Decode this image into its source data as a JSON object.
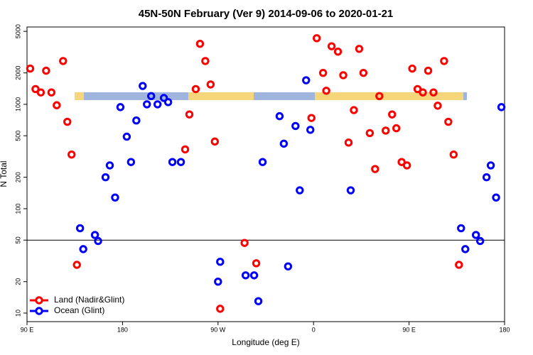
{
  "chart_data": {
    "type": "scatter",
    "title": "45N-50N February (Ver 9)   2014-09-06 to 2020-01-21",
    "x_label": "Longitude (deg E)",
    "y_label": "N Total",
    "y_log": true,
    "xlim": [
      90,
      540
    ],
    "ylim": [
      8.28,
      5508
    ],
    "xticks": [
      {
        "value": 90,
        "label": "90 E"
      },
      180,
      {
        "value": 270,
        "label": "90 W"
      },
      {
        "value": 360,
        "label": "0"
      },
      {
        "value": 450,
        "label": "90 E"
      },
      {
        "value": 540,
        "label": "180"
      }
    ],
    "yticks": [
      10,
      20,
      50,
      100,
      200,
      500,
      1000,
      2000,
      5000
    ],
    "hline": 50,
    "legend_position": "bottom-left",
    "series": [
      {
        "name": "Land (Nadir&Glint)",
        "color": "#ff0000",
        "x": [
          93,
          98,
          103,
          108,
          113,
          118,
          124,
          128,
          132,
          137,
          243,
          239,
          249,
          253,
          258,
          263,
          267,
          272,
          295,
          306,
          358,
          363,
          369,
          372,
          377,
          383,
          388,
          393,
          398,
          403,
          407,
          413,
          418,
          422,
          428,
          434,
          438,
          443,
          448,
          453,
          458,
          463,
          468,
          473,
          477,
          483,
          487,
          492,
          497
        ],
        "values": [
          2200,
          1400,
          1300,
          2100,
          1300,
          980,
          2600,
          680,
          330,
          29,
          800,
          370,
          1400,
          3800,
          2600,
          1550,
          440,
          11,
          47,
          30,
          740,
          4300,
          2000,
          1350,
          3600,
          3200,
          1900,
          430,
          880,
          3400,
          2000,
          530,
          240,
          1200,
          560,
          800,
          590,
          280,
          260,
          2200,
          1400,
          1300,
          2100,
          1300,
          970,
          2600,
          680,
          330,
          29
        ]
      },
      {
        "name": "Ocean (Glint)",
        "color": "#0000ff",
        "x": [
          140,
          143,
          154,
          157,
          164,
          168,
          173,
          178,
          184,
          188,
          193,
          199,
          203,
          207,
          213,
          219,
          223,
          227,
          235,
          270,
          272,
          296,
          304,
          308,
          312,
          328,
          332,
          336,
          343,
          347,
          353,
          357,
          395,
          499,
          503,
          513,
          517,
          523,
          527,
          532,
          537
        ],
        "values": [
          65,
          41,
          56,
          49,
          200,
          260,
          128,
          940,
          490,
          280,
          700,
          1500,
          1000,
          1200,
          1000,
          1150,
          1050,
          280,
          280,
          20,
          31,
          23,
          23,
          13,
          280,
          770,
          420,
          28,
          620,
          150,
          1700,
          570,
          150,
          65,
          41,
          56,
          49,
          200,
          260,
          128,
          940
        ]
      }
    ]
  }
}
